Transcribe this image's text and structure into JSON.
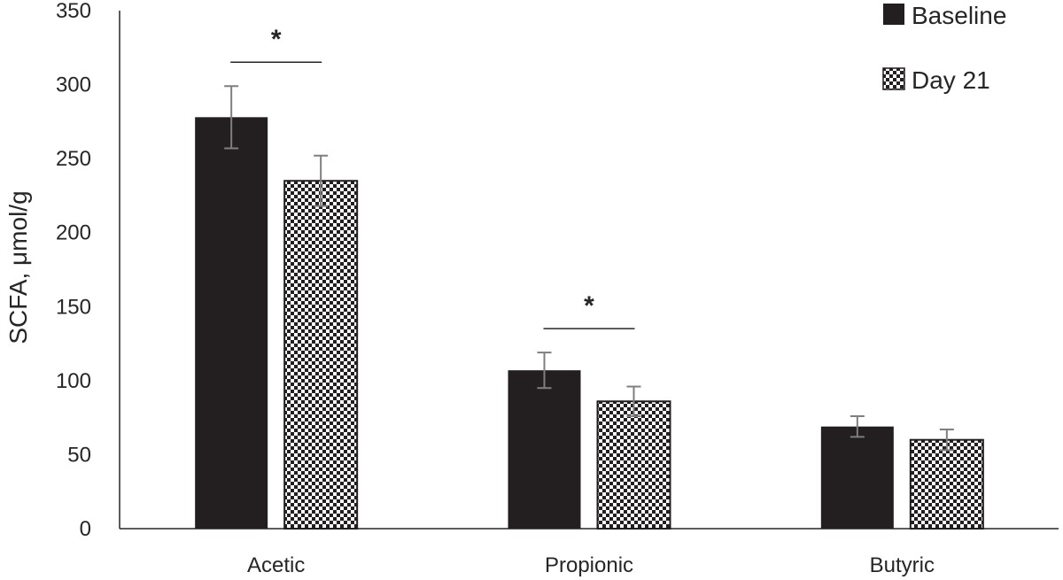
{
  "chart_data": {
    "type": "bar",
    "categories": [
      "Acetic",
      "Propionic",
      "Butyric"
    ],
    "series": [
      {
        "name": "Baseline",
        "values": [
          278,
          107,
          69
        ],
        "error": [
          21,
          12,
          7
        ],
        "fill": "solid",
        "color": "#231f20"
      },
      {
        "name": "Day 21",
        "values": [
          235,
          86,
          60
        ],
        "error": [
          17,
          10,
          7
        ],
        "fill": "checker",
        "color": "#231f20"
      }
    ],
    "ylabel": "SCFA, μmol/g",
    "xlabel": "",
    "ylim": [
      0,
      350
    ],
    "yticks": [
      "0",
      "50",
      "100",
      "150",
      "200",
      "250",
      "300",
      "350"
    ],
    "grid": false,
    "legend_position": "top-right",
    "annotations": [
      {
        "category": "Acetic",
        "text": "*"
      },
      {
        "category": "Propionic",
        "text": "*"
      }
    ],
    "error_bar_color": "#7f7f7f"
  }
}
